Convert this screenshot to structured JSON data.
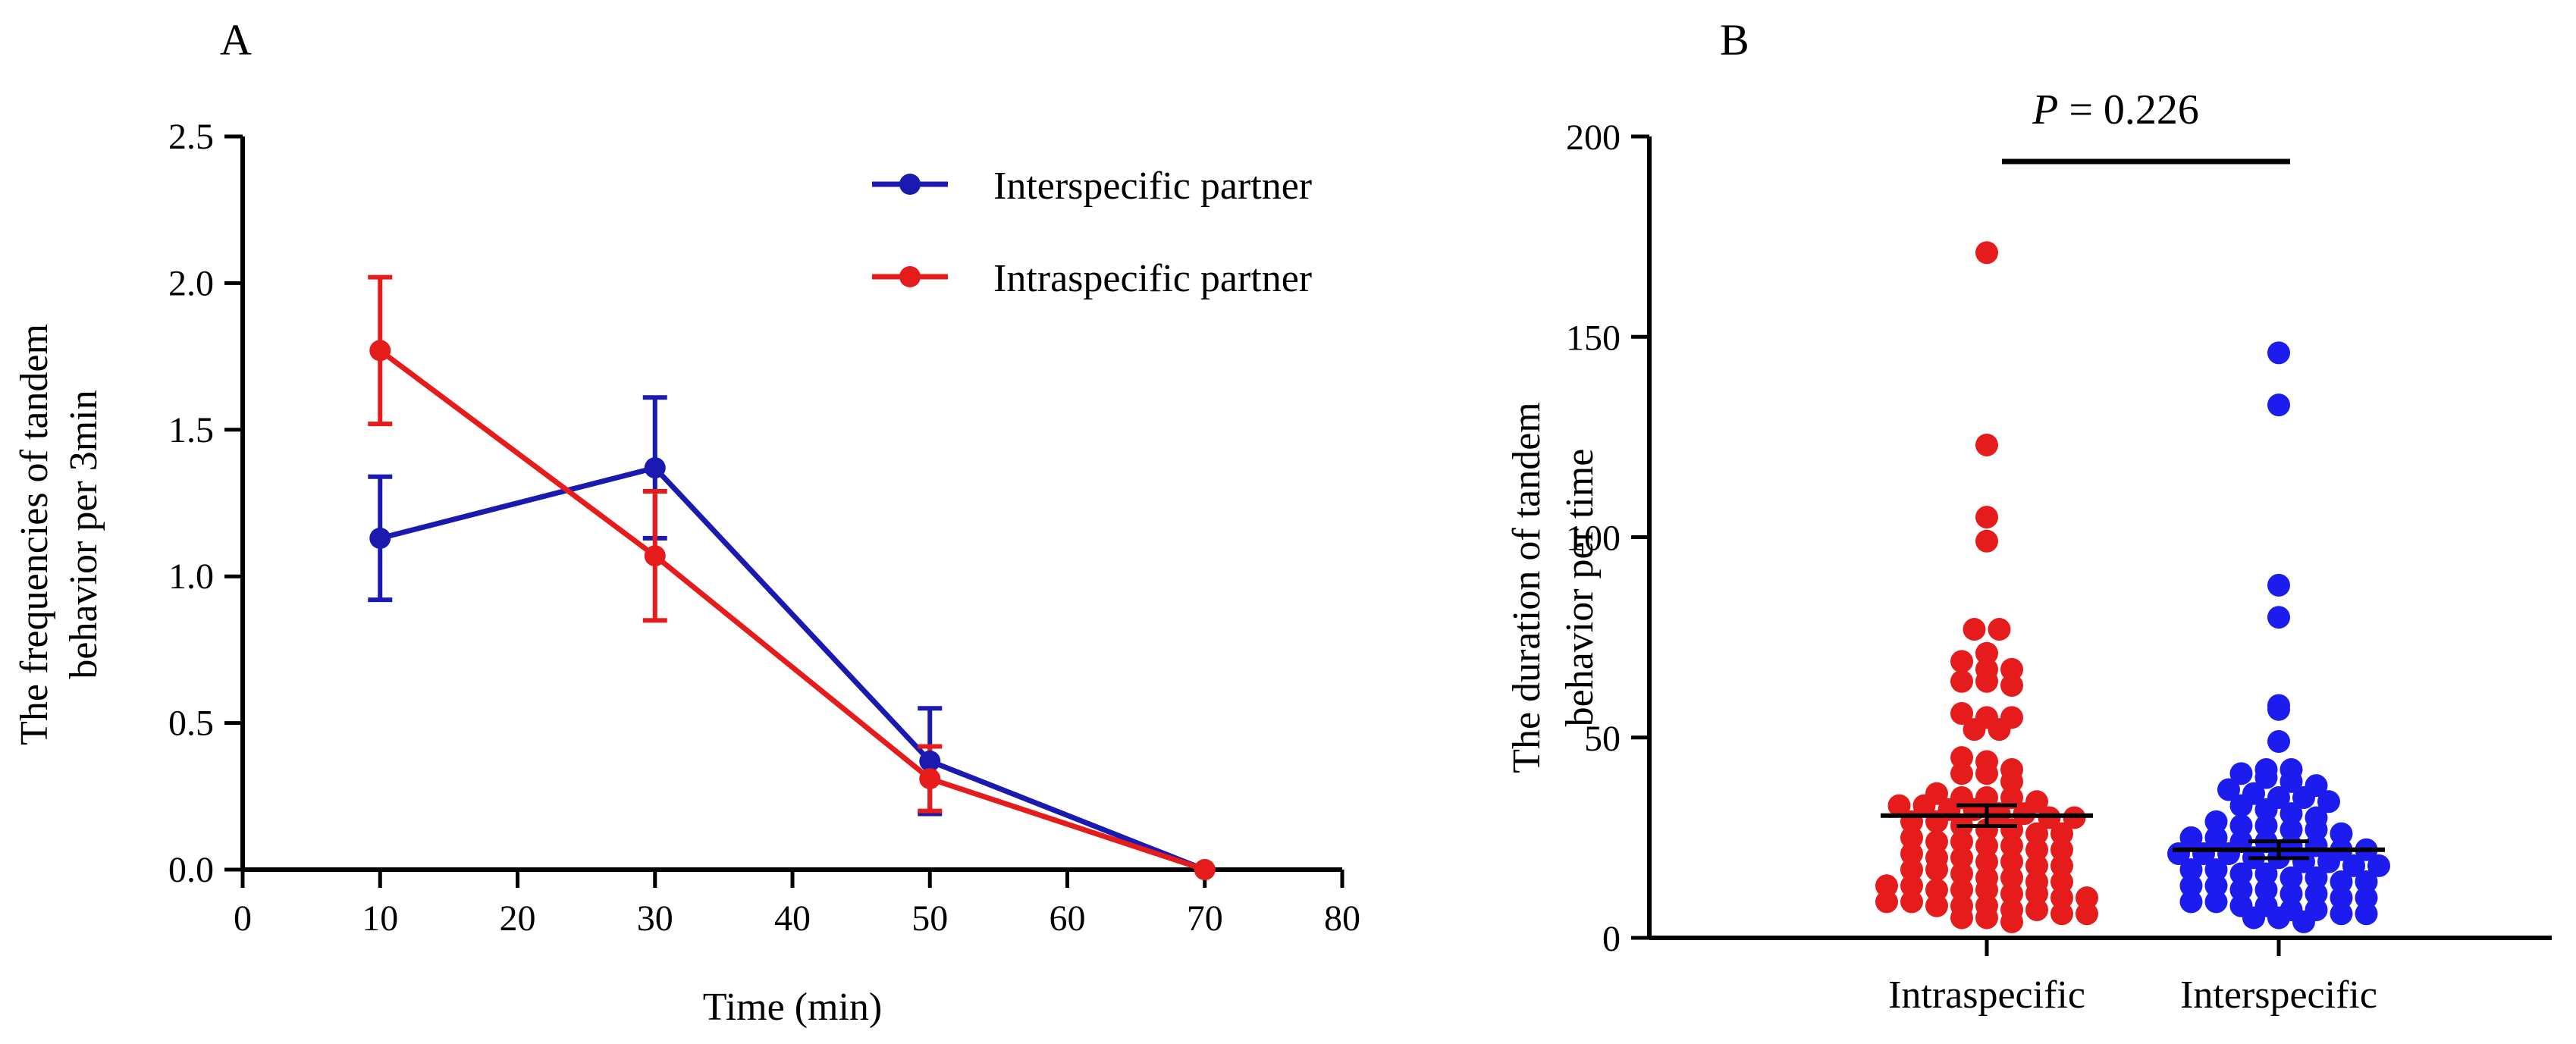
{
  "chart_data": [
    {
      "type": "line",
      "panel_label": "A",
      "title": "",
      "xlabel": "Time (min)",
      "ylabel_lines": [
        "The frequencies of tandem",
        "behavior per 3min"
      ],
      "xlim": [
        0,
        80
      ],
      "ylim": [
        0,
        2.5
      ],
      "x_ticks": [
        "0",
        "10",
        "20",
        "30",
        "40",
        "50",
        "60",
        "70",
        "80"
      ],
      "y_ticks": [
        "0.0",
        "0.5",
        "1.0",
        "1.5",
        "2.0",
        "2.5"
      ],
      "grid": false,
      "legend_position": "top-right",
      "x": [
        10,
        30,
        50,
        70
      ],
      "series": [
        {
          "name": "Interspecific partner",
          "color": "#1a1ab0",
          "values": [
            1.13,
            1.37,
            0.37,
            0.0
          ],
          "errors": [
            0.21,
            0.24,
            0.18,
            0.0
          ]
        },
        {
          "name": "Intraspecific partner",
          "color": "#e61c1c",
          "values": [
            1.77,
            1.07,
            0.31,
            0.0
          ],
          "errors": [
            0.25,
            0.22,
            0.11,
            0.0
          ]
        }
      ]
    },
    {
      "type": "scatter",
      "panel_label": "B",
      "title": "",
      "xlabel": "",
      "ylabel_lines": [
        "The duration of tandem",
        "behavior per time"
      ],
      "ylim": [
        0,
        200
      ],
      "y_ticks": [
        "0",
        "50",
        "100",
        "150",
        "200"
      ],
      "categories": [
        "Intraspecific",
        "Interspecific"
      ],
      "grid": false,
      "significance": {
        "p_symbol": "P",
        "p_rest": " = 0.226"
      },
      "series": [
        {
          "name": "Intraspecific",
          "color": "#e61c1c",
          "mean": 30.5,
          "sem": 2.6,
          "values": [
            171,
            123,
            105,
            99,
            77,
            77,
            71,
            69,
            67,
            67,
            64,
            64,
            63,
            56,
            55,
            55,
            52,
            52,
            45,
            44,
            42,
            41,
            41,
            39,
            36,
            35,
            35,
            35,
            34,
            33,
            33,
            32,
            32,
            31,
            31,
            30,
            30,
            29,
            29,
            28,
            27,
            27,
            26,
            26,
            25,
            24,
            24,
            23,
            23,
            22,
            22,
            21,
            20,
            20,
            19,
            19,
            18,
            18,
            17,
            17,
            16,
            15,
            15,
            14,
            14,
            13,
            13,
            12,
            12,
            12,
            11,
            11,
            10,
            10,
            9,
            9,
            8,
            8,
            8,
            7,
            7,
            6,
            6,
            5,
            5,
            4
          ]
        },
        {
          "name": "Interspecific",
          "color": "#1c1cee",
          "mean": 22.0,
          "sem": 2.1,
          "values": [
            146,
            133,
            88,
            80,
            58,
            57,
            49,
            42,
            42,
            41,
            40,
            39,
            38,
            37,
            36,
            35,
            35,
            34,
            33,
            32,
            31,
            30,
            29,
            28,
            28,
            27,
            27,
            26,
            25,
            25,
            24,
            24,
            23,
            23,
            22,
            22,
            21,
            21,
            21,
            20,
            20,
            19,
            19,
            18,
            18,
            17,
            17,
            16,
            16,
            15,
            15,
            14,
            14,
            13,
            13,
            12,
            12,
            11,
            11,
            10,
            10,
            9,
            9,
            8,
            8,
            7,
            7,
            6,
            6,
            5,
            5,
            4
          ]
        }
      ]
    }
  ]
}
